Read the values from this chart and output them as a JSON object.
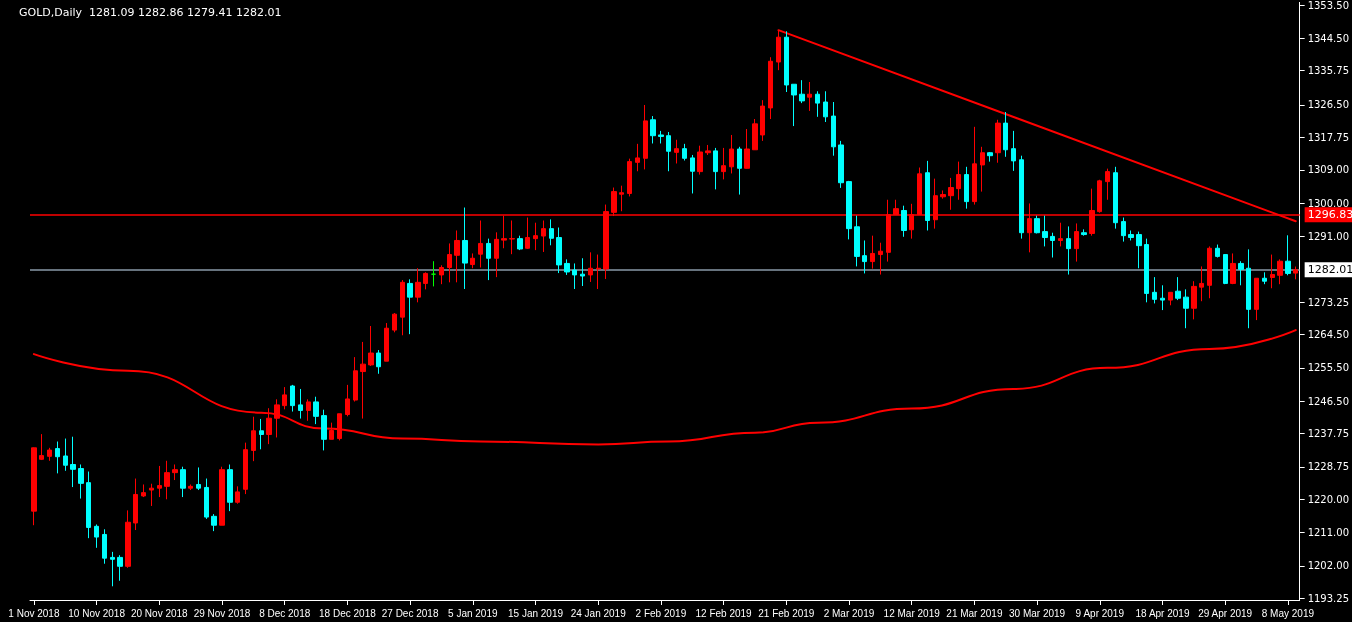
{
  "chart_data": {
    "type": "candlestick",
    "title": "GOLD,Daily  1281.09 1282.86 1279.41 1282.01",
    "categories": [
      "1 Nov 2018",
      null,
      null,
      null,
      null,
      null,
      null,
      null,
      "10 Nov 2018",
      null,
      null,
      null,
      null,
      null,
      null,
      null,
      "20 Nov 2018",
      null,
      null,
      null,
      null,
      null,
      null,
      null,
      "29 Nov 2018",
      null,
      null,
      null,
      null,
      null,
      null,
      null,
      "8 Dec 2018",
      null,
      null,
      null,
      null,
      null,
      null,
      null,
      "18 Dec 2018",
      null,
      null,
      null,
      null,
      null,
      null,
      null,
      "27 Dec 2018",
      null,
      null,
      null,
      null,
      null,
      null,
      null,
      "5 Jan 2019",
      null,
      null,
      null,
      null,
      null,
      null,
      null,
      "15 Jan 2019",
      null,
      null,
      null,
      null,
      null,
      null,
      null,
      "24 Jan 2019",
      null,
      null,
      null,
      null,
      null,
      null,
      null,
      "2 Feb 2019",
      null,
      null,
      null,
      null,
      null,
      null,
      null,
      "12 Feb 2019",
      null,
      null,
      null,
      null,
      null,
      null,
      null,
      "21 Feb 2019",
      null,
      null,
      null,
      null,
      null,
      null,
      null,
      "2 Mar 2019",
      null,
      null,
      null,
      null,
      null,
      null,
      null,
      "12 Mar 2019",
      null,
      null,
      null,
      null,
      null,
      null,
      null,
      "21 Mar 2019",
      null,
      null,
      null,
      null,
      null,
      null,
      null,
      "30 Mar 2019",
      null,
      null,
      null,
      null,
      null,
      null,
      null,
      "9 Apr 2019",
      null,
      null,
      null,
      null,
      null,
      null,
      null,
      "18 Apr 2019",
      null,
      null,
      null,
      null,
      null,
      null,
      null,
      "29 Apr 2019",
      null,
      null,
      null,
      null,
      null,
      null,
      null,
      "8 May 2019",
      null
    ],
    "ohlc": [
      [
        1216.8,
        1234.0,
        1213.0,
        1233.9
      ],
      [
        1230.8,
        1237.6,
        1230.6,
        1231.8
      ],
      [
        1231.6,
        1233.9,
        1230.4,
        1233.3
      ],
      [
        1233.7,
        1235.6,
        1227.0,
        1231.5
      ],
      [
        1231.7,
        1236.4,
        1227.7,
        1229.2
      ],
      [
        1229.4,
        1236.9,
        1223.3,
        1228.1
      ],
      [
        1228.3,
        1229.4,
        1220.2,
        1224.3
      ],
      [
        1224.5,
        1227.5,
        1209.5,
        1212.4
      ],
      [
        1212.7,
        1213.2,
        1206.9,
        1209.8
      ],
      [
        1210.5,
        1211.9,
        1202.6,
        1204.1
      ],
      [
        1204.3,
        1205.8,
        1196.5,
        1203.8
      ],
      [
        1204.3,
        1204.9,
        1198.0,
        1201.9
      ],
      [
        1201.9,
        1217.0,
        1201.5,
        1213.8
      ],
      [
        1213.6,
        1225.6,
        1211.7,
        1221.3
      ],
      [
        1220.9,
        1224.0,
        1220.6,
        1221.8
      ],
      [
        1222.5,
        1224.2,
        1218.2,
        1223.0
      ],
      [
        1223.0,
        1229.0,
        1220.6,
        1223.7
      ],
      [
        1223.5,
        1230.4,
        1220.0,
        1227.2
      ],
      [
        1227.2,
        1229.4,
        1225.2,
        1228.0
      ],
      [
        1228.0,
        1228.8,
        1220.6,
        1223.0
      ],
      [
        1223.0,
        1224.0,
        1222.5,
        1223.5
      ],
      [
        1224.0,
        1228.6,
        1222.5,
        1223.0
      ],
      [
        1223.2,
        1225.6,
        1214.7,
        1215.2
      ],
      [
        1215.4,
        1216.0,
        1211.4,
        1213.0
      ],
      [
        1213.0,
        1228.8,
        1213.0,
        1228.0
      ],
      [
        1228.0,
        1229.4,
        1216.8,
        1219.2
      ],
      [
        1219.2,
        1223.5,
        1218.8,
        1222.0
      ],
      [
        1222.7,
        1235.3,
        1221.4,
        1233.4
      ],
      [
        1233.2,
        1242.3,
        1230.3,
        1238.5
      ],
      [
        1238.5,
        1241.7,
        1233.5,
        1237.5
      ],
      [
        1237.5,
        1244.6,
        1234.9,
        1241.9
      ],
      [
        1241.9,
        1247.0,
        1236.7,
        1245.5
      ],
      [
        1245.3,
        1250.3,
        1244.3,
        1248.2
      ],
      [
        1250.6,
        1250.9,
        1243.7,
        1245.3
      ],
      [
        1245.5,
        1249.8,
        1241.8,
        1244.0
      ],
      [
        1244.0,
        1247.0,
        1241.2,
        1246.3
      ],
      [
        1246.3,
        1247.7,
        1240.3,
        1242.4
      ],
      [
        1242.6,
        1244.2,
        1233.2,
        1236.2
      ],
      [
        1236.2,
        1240.7,
        1236.2,
        1238.6
      ],
      [
        1236.4,
        1243.1,
        1235.9,
        1243.1
      ],
      [
        1242.9,
        1250.9,
        1242.4,
        1247.1
      ],
      [
        1246.8,
        1258.4,
        1246.4,
        1254.7
      ],
      [
        1254.5,
        1262.5,
        1241.8,
        1256.5
      ],
      [
        1256.3,
        1266.8,
        1256.0,
        1259.5
      ],
      [
        1259.5,
        1260.3,
        1253.9,
        1255.8
      ],
      [
        1257.3,
        1267.6,
        1257.3,
        1266.2
      ],
      [
        1265.7,
        1270.3,
        1265.1,
        1270.0
      ],
      [
        1269.2,
        1279.2,
        1264.3,
        1278.6
      ],
      [
        1278.3,
        1279.4,
        1264.6,
        1274.6
      ],
      [
        1274.6,
        1282.4,
        1273.2,
        1278.6
      ],
      [
        1278.3,
        1281.3,
        1276.7,
        1281.0
      ],
      [
        1280.8,
        1284.3,
        1277.5,
        1280.8
      ],
      [
        1280.6,
        1283.2,
        1278.1,
        1282.6
      ],
      [
        1282.6,
        1289.1,
        1278.6,
        1286.1
      ],
      [
        1285.9,
        1292.6,
        1278.6,
        1289.9
      ],
      [
        1289.9,
        1298.8,
        1276.8,
        1283.8
      ],
      [
        1283.4,
        1286.4,
        1282.4,
        1285.1
      ],
      [
        1286.2,
        1295.3,
        1282.6,
        1289.1
      ],
      [
        1289.1,
        1290.4,
        1279.2,
        1285.1
      ],
      [
        1285.1,
        1292.1,
        1280.0,
        1290.2
      ],
      [
        1290.0,
        1296.6,
        1287.8,
        1290.4
      ],
      [
        1290.3,
        1295.3,
        1286.2,
        1290.4
      ],
      [
        1290.4,
        1291.2,
        1287.3,
        1287.6
      ],
      [
        1287.8,
        1296.1,
        1287.6,
        1290.7
      ],
      [
        1290.4,
        1294.7,
        1287.3,
        1291.2
      ],
      [
        1291.1,
        1295.3,
        1286.8,
        1293.1
      ],
      [
        1293.1,
        1295.6,
        1288.6,
        1290.5
      ],
      [
        1290.7,
        1293.4,
        1281.1,
        1283.3
      ],
      [
        1283.7,
        1284.8,
        1280.6,
        1281.4
      ],
      [
        1281.9,
        1283.7,
        1276.8,
        1280.6
      ],
      [
        1280.8,
        1285.1,
        1277.6,
        1280.3
      ],
      [
        1280.6,
        1286.7,
        1278.7,
        1282.4
      ],
      [
        1282.2,
        1286.1,
        1276.8,
        1282.4
      ],
      [
        1282.2,
        1299.6,
        1279.5,
        1297.7
      ],
      [
        1297.5,
        1304.2,
        1296.5,
        1303.1
      ],
      [
        1302.4,
        1304.7,
        1297.8,
        1302.8
      ],
      [
        1302.6,
        1312.0,
        1301.8,
        1311.2
      ],
      [
        1311.0,
        1316.0,
        1308.6,
        1312.2
      ],
      [
        1312.1,
        1326.5,
        1309.1,
        1322.2
      ],
      [
        1322.5,
        1323.5,
        1316.1,
        1318.2
      ],
      [
        1318.4,
        1319.5,
        1316.1,
        1318.0
      ],
      [
        1318.2,
        1319.2,
        1308.6,
        1314.0
      ],
      [
        1313.7,
        1317.1,
        1310.7,
        1314.7
      ],
      [
        1314.7,
        1316.0,
        1311.5,
        1312.1
      ],
      [
        1312.2,
        1313.0,
        1302.6,
        1308.6
      ],
      [
        1308.5,
        1315.5,
        1307.7,
        1313.8
      ],
      [
        1313.6,
        1315.7,
        1313.0,
        1314.1
      ],
      [
        1314.1,
        1314.9,
        1303.7,
        1308.5
      ],
      [
        1308.5,
        1314.9,
        1306.4,
        1310.1
      ],
      [
        1309.8,
        1318.4,
        1308.0,
        1314.6
      ],
      [
        1314.6,
        1315.2,
        1302.3,
        1309.4
      ],
      [
        1309.4,
        1320.0,
        1309.3,
        1314.6
      ],
      [
        1314.4,
        1322.7,
        1314.4,
        1321.4
      ],
      [
        1318.4,
        1327.8,
        1316.8,
        1326.2
      ],
      [
        1325.7,
        1339.4,
        1322.7,
        1338.3
      ],
      [
        1338.1,
        1346.7,
        1335.9,
        1344.8
      ],
      [
        1344.8,
        1346.4,
        1330.0,
        1331.9
      ],
      [
        1332.1,
        1332.1,
        1320.8,
        1329.2
      ],
      [
        1329.4,
        1333.2,
        1327.0,
        1327.6
      ],
      [
        1328.6,
        1332.7,
        1324.9,
        1329.4
      ],
      [
        1329.4,
        1330.2,
        1323.3,
        1327.0
      ],
      [
        1327.3,
        1330.2,
        1321.9,
        1323.3
      ],
      [
        1323.5,
        1327.3,
        1312.8,
        1315.2
      ],
      [
        1315.7,
        1316.8,
        1304.1,
        1305.5
      ],
      [
        1305.8,
        1306.0,
        1290.2,
        1293.1
      ],
      [
        1293.6,
        1296.6,
        1282.9,
        1285.6
      ],
      [
        1285.8,
        1289.9,
        1281.0,
        1284.2
      ],
      [
        1284.2,
        1291.2,
        1282.3,
        1286.4
      ],
      [
        1286.1,
        1289.3,
        1280.7,
        1287.0
      ],
      [
        1286.7,
        1300.9,
        1284.2,
        1296.9
      ],
      [
        1296.9,
        1300.9,
        1296.9,
        1298.5
      ],
      [
        1298.0,
        1299.3,
        1290.9,
        1292.6
      ],
      [
        1292.8,
        1299.8,
        1290.4,
        1296.9
      ],
      [
        1296.9,
        1309.6,
        1296.9,
        1307.9
      ],
      [
        1308.2,
        1311.4,
        1292.6,
        1295.3
      ],
      [
        1295.5,
        1306.6,
        1293.1,
        1302.0
      ],
      [
        1301.7,
        1303.4,
        1301.2,
        1302.3
      ],
      [
        1302.0,
        1306.8,
        1298.2,
        1304.2
      ],
      [
        1303.9,
        1311.2,
        1300.9,
        1307.7
      ],
      [
        1307.7,
        1309.8,
        1298.5,
        1300.4
      ],
      [
        1300.4,
        1320.6,
        1299.6,
        1310.6
      ],
      [
        1310.3,
        1315.2,
        1303.1,
        1313.6
      ],
      [
        1313.6,
        1313.8,
        1311.2,
        1312.8
      ],
      [
        1313.6,
        1322.5,
        1310.9,
        1321.6
      ],
      [
        1321.6,
        1324.6,
        1312.5,
        1314.4
      ],
      [
        1314.7,
        1319.5,
        1308.7,
        1311.4
      ],
      [
        1311.7,
        1312.8,
        1290.4,
        1292.0
      ],
      [
        1292.0,
        1299.9,
        1286.7,
        1295.8
      ],
      [
        1295.8,
        1296.6,
        1291.8,
        1292.0
      ],
      [
        1292.3,
        1296.6,
        1288.3,
        1290.7
      ],
      [
        1291.0,
        1292.0,
        1285.3,
        1289.9
      ],
      [
        1289.9,
        1294.7,
        1288.3,
        1290.4
      ],
      [
        1290.4,
        1293.7,
        1280.7,
        1287.7
      ],
      [
        1287.7,
        1294.5,
        1284.2,
        1292.3
      ],
      [
        1292.0,
        1292.9,
        1291.2,
        1291.5
      ],
      [
        1291.8,
        1303.9,
        1291.2,
        1298.0
      ],
      [
        1297.7,
        1306.3,
        1297.4,
        1306.0
      ],
      [
        1305.8,
        1309.3,
        1300.9,
        1308.5
      ],
      [
        1308.2,
        1309.8,
        1293.1,
        1294.7
      ],
      [
        1295.0,
        1296.1,
        1289.6,
        1291.2
      ],
      [
        1291.5,
        1292.6,
        1289.9,
        1290.7
      ],
      [
        1291.5,
        1292.3,
        1282.4,
        1288.5
      ],
      [
        1288.8,
        1290.4,
        1273.2,
        1275.6
      ],
      [
        1275.9,
        1280.0,
        1272.9,
        1274.0
      ],
      [
        1274.3,
        1277.8,
        1271.1,
        1273.8
      ],
      [
        1273.8,
        1275.9,
        1272.4,
        1275.9
      ],
      [
        1276.2,
        1280.0,
        1273.8,
        1274.3
      ],
      [
        1274.6,
        1276.7,
        1266.2,
        1271.6
      ],
      [
        1271.6,
        1278.9,
        1268.6,
        1277.5
      ],
      [
        1277.3,
        1282.9,
        1273.5,
        1278.3
      ],
      [
        1277.8,
        1288.3,
        1274.3,
        1287.8
      ],
      [
        1287.8,
        1288.8,
        1285.3,
        1285.6
      ],
      [
        1286.1,
        1286.1,
        1278.1,
        1278.3
      ],
      [
        1278.3,
        1286.4,
        1278.1,
        1283.7
      ],
      [
        1283.7,
        1284.3,
        1277.8,
        1282.1
      ],
      [
        1282.4,
        1287.5,
        1266.2,
        1271.3
      ],
      [
        1271.3,
        1279.7,
        1268.4,
        1279.7
      ],
      [
        1279.7,
        1281.3,
        1278.1,
        1278.9
      ],
      [
        1279.9,
        1286.1,
        1277.0,
        1280.7
      ],
      [
        1280.5,
        1284.8,
        1278.1,
        1284.3
      ],
      [
        1284.3,
        1291.3,
        1280.5,
        1281.0
      ],
      [
        1281.09,
        1282.86,
        1279.41,
        1282.01
      ]
    ],
    "colors": [
      "#ff0000",
      "#ff0000",
      "#ff0000",
      "#00ffff",
      "#00ffff",
      "#00ffff",
      "#00ffff",
      "#00ffff",
      "#00ffff",
      "#00ffff",
      "#00ffff",
      "#00ffff",
      "#ff0000",
      "#ff0000",
      "#ff0000",
      "#ff0000",
      "#ff0000",
      "#ff0000",
      "#ff0000",
      "#00ffff",
      "#ff0000",
      "#00ffff",
      "#00ffff",
      "#00ffff",
      "#ff0000",
      "#00ffff",
      "#ff0000",
      "#ff0000",
      "#ff0000",
      "#00ffff",
      "#ff0000",
      "#ff0000",
      "#ff0000",
      "#00ffff",
      "#00ffff",
      "#ff0000",
      "#00ffff",
      "#00ffff",
      "#ff0000",
      "#ff0000",
      "#ff0000",
      "#ff0000",
      "#ff0000",
      "#ff0000",
      "#00ffff",
      "#ff0000",
      "#ff0000",
      "#ff0000",
      "#00ffff",
      "#ff0000",
      "#ff0000",
      "#00ff00",
      "#ff0000",
      "#ff0000",
      "#ff0000",
      "#00ffff",
      "#ff0000",
      "#ff0000",
      "#00ffff",
      "#ff0000",
      "#ff0000",
      "#ff0000",
      "#00ffff",
      "#ff0000",
      "#ff0000",
      "#ff0000",
      "#00ffff",
      "#00ffff",
      "#00ffff",
      "#00ffff",
      "#00ffff",
      "#ff0000",
      "#ff0000",
      "#ff0000",
      "#ff0000",
      "#ff0000",
      "#ff0000",
      "#ff0000",
      "#ff0000",
      "#00ffff",
      "#00ffff",
      "#00ffff",
      "#ff0000",
      "#00ffff",
      "#00ffff",
      "#ff0000",
      "#ff0000",
      "#00ffff",
      "#ff0000",
      "#ff0000",
      "#00ffff",
      "#ff0000",
      "#ff0000",
      "#ff0000",
      "#ff0000",
      "#ff0000",
      "#00ffff",
      "#00ffff",
      "#00ffff",
      "#ff0000",
      "#00ffff",
      "#00ffff",
      "#00ffff",
      "#00ffff",
      "#00ffff",
      "#00ffff",
      "#00ffff",
      "#ff0000",
      "#ff0000",
      "#ff0000",
      "#ff0000",
      "#00ffff",
      "#ff0000",
      "#ff0000",
      "#00ffff",
      "#ff0000",
      "#ff0000",
      "#ff0000",
      "#ff0000",
      "#00ffff",
      "#ff0000",
      "#ff0000",
      "#00ffff",
      "#ff0000",
      "#00ffff",
      "#00ffff",
      "#00ffff",
      "#ff0000",
      "#00ffff",
      "#00ffff",
      "#00ffff",
      "#ff0000",
      "#00ffff",
      "#ff0000",
      "#00ffff",
      "#ff0000",
      "#ff0000",
      "#ff0000",
      "#00ffff",
      "#00ffff",
      "#00ffff",
      "#00ffff",
      "#00ffff",
      "#00ffff",
      "#00ffff",
      "#ff0000",
      "#00ffff",
      "#00ffff",
      "#ff0000",
      "#ff0000",
      "#ff0000",
      "#00ffff",
      "#00ffff",
      "#ff0000",
      "#00ffff",
      "#00ffff",
      "#ff0000",
      "#00ffff",
      "#ff0000",
      "#ff0000",
      "#00ffff",
      "#ff0000"
    ],
    "series": [
      {
        "type": "line",
        "color": "#ff0000",
        "values": [
          1259.2,
          null,
          null,
          null,
          null,
          null,
          null,
          null,
          null,
          null,
          null,
          null,
          1254.7,
          null,
          null,
          null,
          null,
          null,
          null,
          null,
          null,
          null,
          null,
          null,
          null,
          null,
          null,
          null,
          null,
          1243.4,
          null,
          null,
          null,
          null,
          null,
          null,
          null,
          1239.1,
          null,
          null,
          null,
          null,
          null,
          null,
          null,
          null,
          null,
          1236.4,
          null,
          null,
          null,
          null,
          null,
          null,
          null,
          null,
          null,
          1235.6,
          null,
          null,
          null,
          null,
          null,
          null,
          null,
          null,
          null,
          null,
          null,
          null,
          null,
          null,
          1234.8,
          null,
          null,
          null,
          null,
          null,
          null,
          null,
          null,
          1235.6,
          null,
          null,
          null,
          null,
          null,
          null,
          null,
          null,
          null,
          null,
          1238.0,
          null,
          null,
          null,
          null,
          null,
          null,
          null,
          1240.7,
          null,
          null,
          null,
          null,
          null,
          null,
          null,
          null,
          null,
          null,
          null,
          1244.5,
          null,
          null,
          null,
          null,
          null,
          null,
          null,
          null,
          null,
          null,
          null,
          null,
          1249.8,
          null,
          null,
          null,
          null,
          null,
          null,
          null,
          null,
          null,
          null,
          null,
          1255.5,
          null,
          null,
          null,
          null,
          null,
          null,
          null,
          null,
          null,
          null,
          null,
          null,
          1260.6,
          null,
          null,
          null,
          null,
          null,
          null,
          null,
          null,
          null,
          null,
          1265.7
        ]
      },
      {
        "type": "line",
        "color": "#ff0000",
        "values": [
          null,
          null,
          null,
          null,
          null,
          null,
          null,
          null,
          null,
          null,
          null,
          null,
          null,
          null,
          null,
          null,
          null,
          null,
          null,
          null,
          null,
          null,
          null,
          null,
          null,
          null,
          null,
          null,
          null,
          null,
          null,
          null,
          null,
          null,
          null,
          null,
          null,
          null,
          null,
          null,
          null,
          null,
          null,
          null,
          null,
          null,
          null,
          null,
          null,
          null,
          null,
          null,
          null,
          null,
          null,
          null,
          null,
          null,
          null,
          null,
          null,
          null,
          null,
          null,
          null,
          null,
          null,
          null,
          null,
          null,
          null,
          null,
          null,
          null,
          null,
          null,
          null,
          null,
          null,
          null,
          null,
          null,
          null,
          null,
          null,
          null,
          null,
          null,
          null,
          null,
          null,
          null,
          null,
          null,
          null,
          1346.7,
          null,
          null,
          null,
          null,
          null,
          null,
          null,
          null,
          null,
          null,
          null,
          null,
          null,
          null,
          null,
          null,
          null,
          null,
          null,
          null,
          null,
          null,
          null,
          null,
          null,
          null,
          null,
          null,
          null,
          null,
          null,
          null,
          null,
          null,
          null,
          null,
          null,
          null,
          null,
          null,
          null,
          null,
          null,
          null,
          null,
          null,
          null,
          null,
          null,
          null,
          null,
          null,
          null,
          null,
          null,
          null,
          null,
          null,
          null,
          null,
          null,
          null,
          null,
          null,
          null,
          1295.1
        ]
      }
    ],
    "marker": "none",
    "ylim": [
      1192.8,
      1354.2
    ],
    "yticks": [
      {
        "value": 1353.5,
        "label": "1353.50"
      },
      {
        "value": 1344.5,
        "label": "1344.50"
      },
      {
        "value": 1335.75,
        "label": "1335.75"
      },
      {
        "value": 1326.5,
        "label": "1326.50"
      },
      {
        "value": 1317.75,
        "label": "1317.75"
      },
      {
        "value": 1309,
        "label": "1309.00"
      },
      {
        "value": 1300,
        "label": "1300.00"
      },
      {
        "value": 1291,
        "label": "1291.00"
      },
      {
        "value": 1273.25,
        "label": "1273.25"
      },
      {
        "value": 1264.5,
        "label": "1264.50"
      },
      {
        "value": 1255.5,
        "label": "1255.50"
      },
      {
        "value": 1246.5,
        "label": "1246.50"
      },
      {
        "value": 1237.75,
        "label": "1237.75"
      },
      {
        "value": 1228.75,
        "label": "1228.75"
      },
      {
        "value": 1220,
        "label": "1220.00"
      },
      {
        "value": 1211,
        "label": "1211.00"
      },
      {
        "value": 1202,
        "label": "1202.00"
      },
      {
        "value": 1193.25,
        "label": "1193.25"
      }
    ],
    "ref_lines": [
      {
        "axis": "y",
        "value": 1296.83,
        "label": "1296.83",
        "color": "#ff0000"
      },
      {
        "axis": "y",
        "value": 1282.01,
        "label": "1282.01",
        "color": "#8a9aa8"
      }
    ],
    "grid": false
  }
}
